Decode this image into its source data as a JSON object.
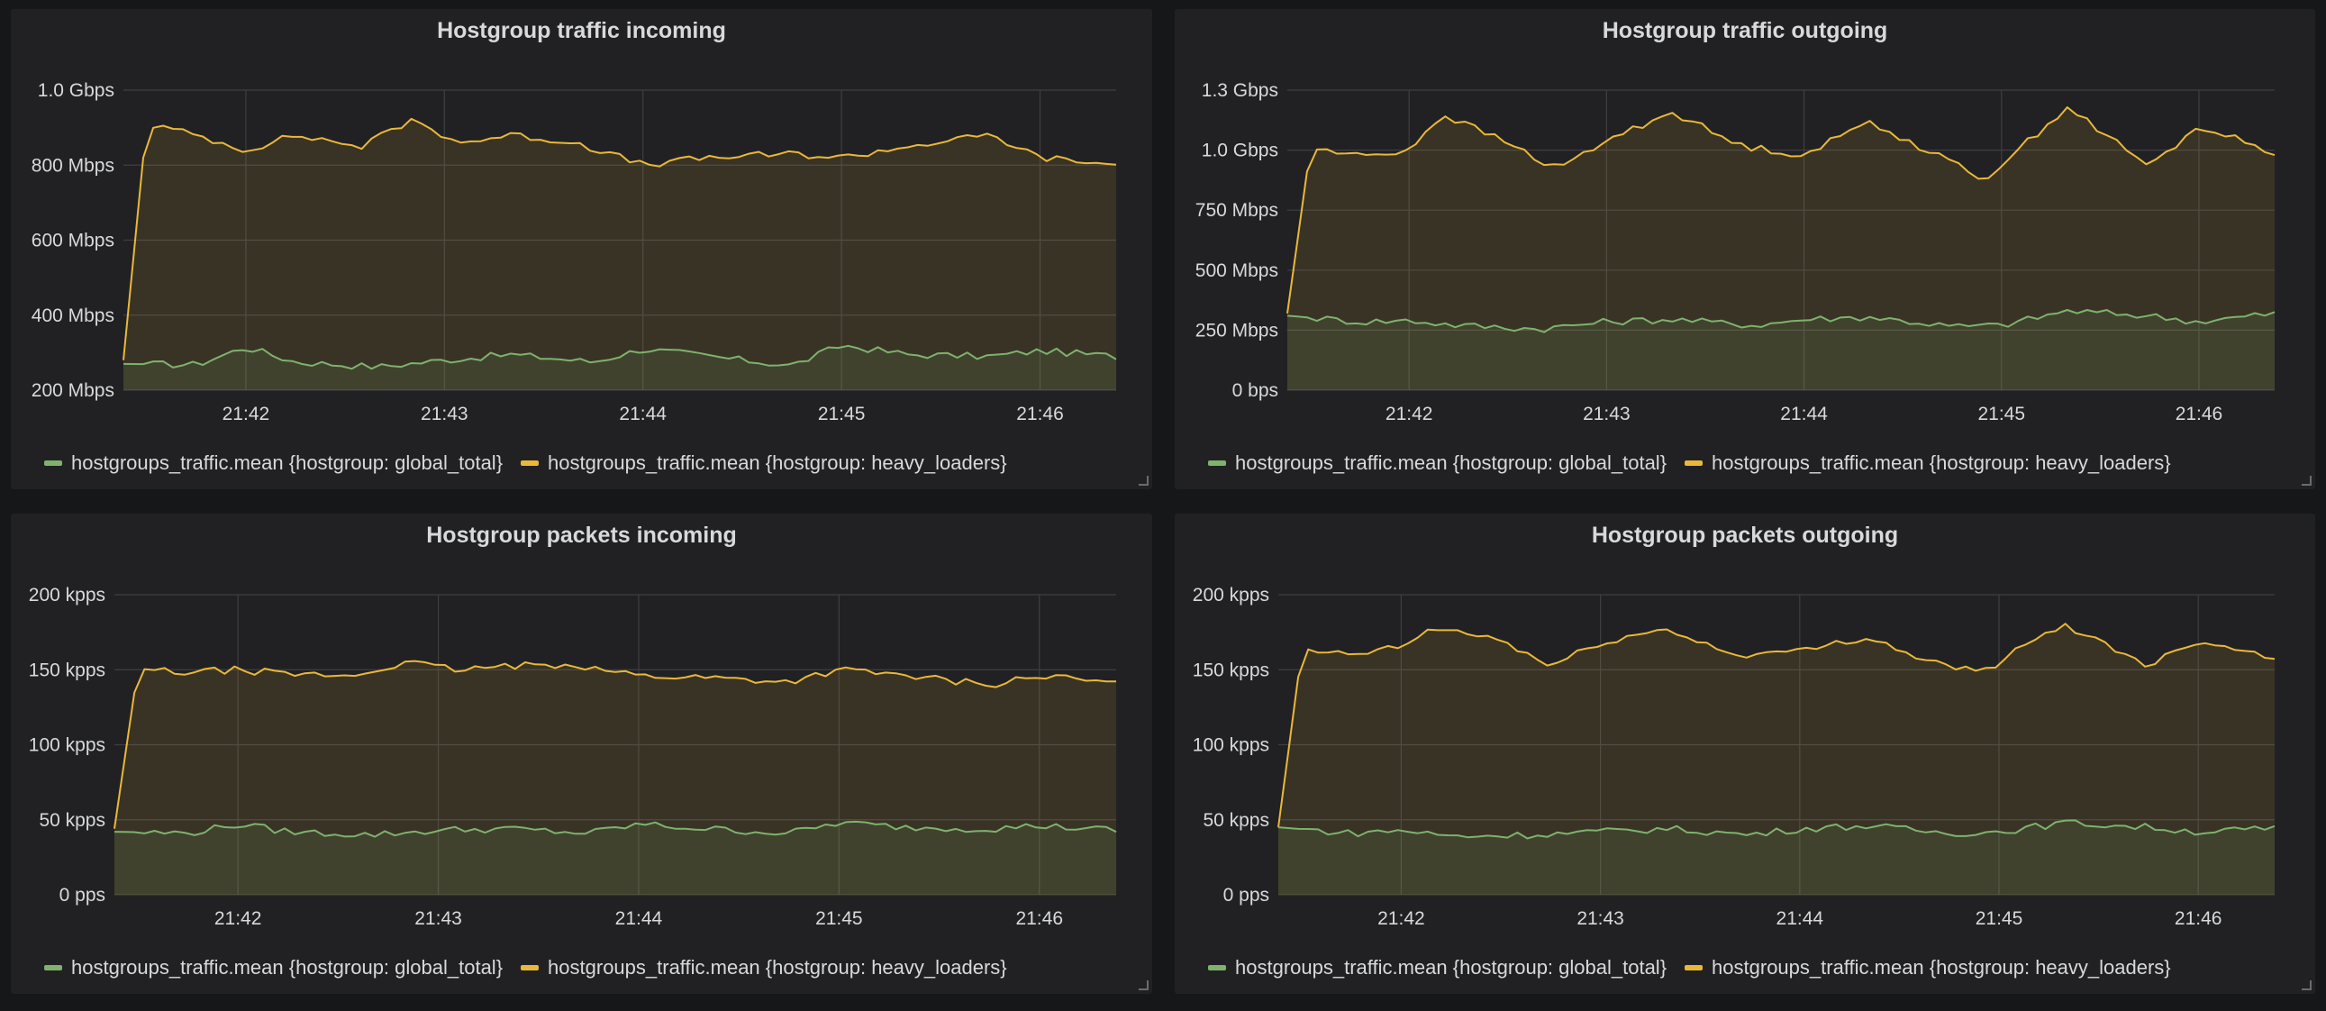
{
  "chart_data": [
    {
      "type": "area",
      "title": "Hostgroup traffic incoming",
      "y_unit": "Mbps",
      "ylim": [
        200,
        1000
      ],
      "y_ticks": [
        200,
        400,
        600,
        800,
        1000
      ],
      "y_tick_labels": [
        "200 Mbps",
        "400 Mbps",
        "600 Mbps",
        "800 Mbps",
        "1.0 Gbps"
      ],
      "x_range": [
        "21:41:23",
        "21:46:23"
      ],
      "x_ticks": [
        "21:42",
        "21:43",
        "21:44",
        "21:45",
        "21:46"
      ],
      "grid": true,
      "legend_position": "bottom-left",
      "series": [
        {
          "name": "hostgroups_traffic.mean {hostgroup: global_total}",
          "color": "#7eb26d",
          "x": [
            "21:41:23",
            "21:41:45",
            "21:42:00",
            "21:42:15",
            "21:42:40",
            "21:43:00",
            "21:43:20",
            "21:43:45",
            "21:44:00",
            "21:44:20",
            "21:44:45",
            "21:45:00",
            "21:45:20",
            "21:45:45",
            "21:46:00",
            "21:46:23"
          ],
          "y": [
            270,
            268,
            315,
            275,
            262,
            280,
            295,
            275,
            310,
            290,
            265,
            320,
            295,
            290,
            305,
            290
          ]
        },
        {
          "name": "hostgroups_traffic.mean {hostgroup: heavy_loaders}",
          "color": "#eab839",
          "x": [
            "21:41:23",
            "21:41:30",
            "21:41:45",
            "21:42:00",
            "21:42:15",
            "21:42:35",
            "21:42:50",
            "21:43:05",
            "21:43:20",
            "21:43:40",
            "21:44:00",
            "21:44:20",
            "21:44:45",
            "21:45:00",
            "21:45:20",
            "21:45:45",
            "21:46:00",
            "21:46:23"
          ],
          "y": [
            280,
            910,
            880,
            840,
            880,
            850,
            920,
            860,
            880,
            860,
            800,
            820,
            830,
            820,
            850,
            880,
            820,
            800
          ]
        }
      ]
    },
    {
      "type": "area",
      "title": "Hostgroup traffic outgoing",
      "y_unit": "Mbps",
      "ylim": [
        0,
        1250
      ],
      "y_ticks": [
        0,
        250,
        500,
        750,
        1000,
        1250
      ],
      "y_tick_labels": [
        "0 bps",
        "250 Mbps",
        "500 Mbps",
        "750 Mbps",
        "1.0 Gbps",
        "1.3 Gbps"
      ],
      "x_range": [
        "21:41:23",
        "21:46:23"
      ],
      "x_ticks": [
        "21:42",
        "21:43",
        "21:44",
        "21:45",
        "21:46"
      ],
      "grid": true,
      "legend_position": "bottom-left",
      "series": [
        {
          "name": "hostgroups_traffic.mean {hostgroup: global_total}",
          "color": "#7eb26d",
          "x": [
            "21:41:23",
            "21:41:45",
            "21:42:00",
            "21:42:15",
            "21:42:40",
            "21:43:00",
            "21:43:20",
            "21:43:45",
            "21:44:00",
            "21:44:20",
            "21:44:45",
            "21:45:00",
            "21:45:20",
            "21:45:45",
            "21:46:00",
            "21:46:23"
          ],
          "y": [
            310,
            285,
            290,
            270,
            255,
            285,
            295,
            270,
            295,
            305,
            265,
            270,
            330,
            310,
            285,
            320
          ]
        },
        {
          "name": "hostgroups_traffic.mean {hostgroup: heavy_loaders}",
          "color": "#eab839",
          "x": [
            "21:41:23",
            "21:41:30",
            "21:41:45",
            "21:42:00",
            "21:42:10",
            "21:42:30",
            "21:42:45",
            "21:43:00",
            "21:43:20",
            "21:43:40",
            "21:44:00",
            "21:44:20",
            "21:44:40",
            "21:44:55",
            "21:45:05",
            "21:45:20",
            "21:45:45",
            "21:46:00",
            "21:46:23"
          ],
          "y": [
            320,
            1010,
            975,
            1000,
            1150,
            1030,
            920,
            1040,
            1160,
            1020,
            980,
            1120,
            980,
            880,
            1000,
            1180,
            930,
            1100,
            990
          ]
        }
      ]
    },
    {
      "type": "area",
      "title": "Hostgroup packets incoming",
      "y_unit": "kpps",
      "ylim": [
        0,
        200
      ],
      "y_ticks": [
        0,
        50,
        100,
        150,
        200
      ],
      "y_tick_labels": [
        "0 pps",
        "50 kpps",
        "100 kpps",
        "150 kpps",
        "200 kpps"
      ],
      "x_range": [
        "21:41:23",
        "21:46:23"
      ],
      "x_ticks": [
        "21:42",
        "21:43",
        "21:44",
        "21:45",
        "21:46"
      ],
      "grid": true,
      "legend_position": "bottom-left",
      "series": [
        {
          "name": "hostgroups_traffic.mean {hostgroup: global_total}",
          "color": "#7eb26d",
          "x": [
            "21:41:23",
            "21:41:45",
            "21:42:00",
            "21:42:15",
            "21:42:40",
            "21:43:00",
            "21:43:20",
            "21:43:45",
            "21:44:00",
            "21:44:20",
            "21:44:45",
            "21:45:00",
            "21:45:20",
            "21:45:45",
            "21:46:00",
            "21:46:23"
          ],
          "y": [
            42,
            41,
            47,
            42,
            40,
            43,
            44,
            41,
            47,
            44,
            41,
            48,
            45,
            44,
            46,
            43
          ]
        },
        {
          "name": "hostgroups_traffic.mean {hostgroup: heavy_loaders}",
          "color": "#eab839",
          "x": [
            "21:41:23",
            "21:41:30",
            "21:41:45",
            "21:42:00",
            "21:42:15",
            "21:42:35",
            "21:42:50",
            "21:43:05",
            "21:43:20",
            "21:43:40",
            "21:44:00",
            "21:44:20",
            "21:44:45",
            "21:45:00",
            "21:45:20",
            "21:45:45",
            "21:46:00",
            "21:46:23"
          ],
          "y": [
            44,
            150,
            148,
            150,
            147,
            146,
            155,
            150,
            152,
            154,
            146,
            145,
            142,
            150,
            146,
            140,
            146,
            141
          ]
        }
      ]
    },
    {
      "type": "area",
      "title": "Hostgroup packets outgoing",
      "y_unit": "kpps",
      "ylim": [
        0,
        200
      ],
      "y_ticks": [
        0,
        50,
        100,
        150,
        200
      ],
      "y_tick_labels": [
        "0 pps",
        "50 kpps",
        "100 kpps",
        "150 kpps",
        "200 kpps"
      ],
      "x_range": [
        "21:41:23",
        "21:46:23"
      ],
      "x_ticks": [
        "21:42",
        "21:43",
        "21:44",
        "21:45",
        "21:46"
      ],
      "grid": true,
      "legend_position": "bottom-left",
      "series": [
        {
          "name": "hostgroups_traffic.mean {hostgroup: global_total}",
          "color": "#7eb26d",
          "x": [
            "21:41:23",
            "21:41:45",
            "21:42:00",
            "21:42:15",
            "21:42:40",
            "21:43:00",
            "21:43:20",
            "21:43:45",
            "21:44:00",
            "21:44:20",
            "21:44:45",
            "21:45:00",
            "21:45:20",
            "21:45:45",
            "21:46:00",
            "21:46:23"
          ],
          "y": [
            45,
            41,
            43,
            39,
            40,
            42,
            44,
            40,
            44,
            46,
            41,
            42,
            48,
            45,
            42,
            44
          ]
        },
        {
          "name": "hostgroups_traffic.mean {hostgroup: heavy_loaders}",
          "color": "#eab839",
          "x": [
            "21:41:23",
            "21:41:30",
            "21:41:45",
            "21:42:00",
            "21:42:10",
            "21:42:30",
            "21:42:45",
            "21:43:00",
            "21:43:20",
            "21:43:40",
            "21:44:00",
            "21:44:20",
            "21:44:40",
            "21:44:55",
            "21:45:05",
            "21:45:20",
            "21:45:45",
            "21:46:00",
            "21:46:23"
          ],
          "y": [
            45,
            162,
            160,
            165,
            178,
            170,
            152,
            168,
            177,
            160,
            162,
            172,
            155,
            148,
            162,
            180,
            153,
            170,
            158
          ]
        }
      ]
    }
  ]
}
